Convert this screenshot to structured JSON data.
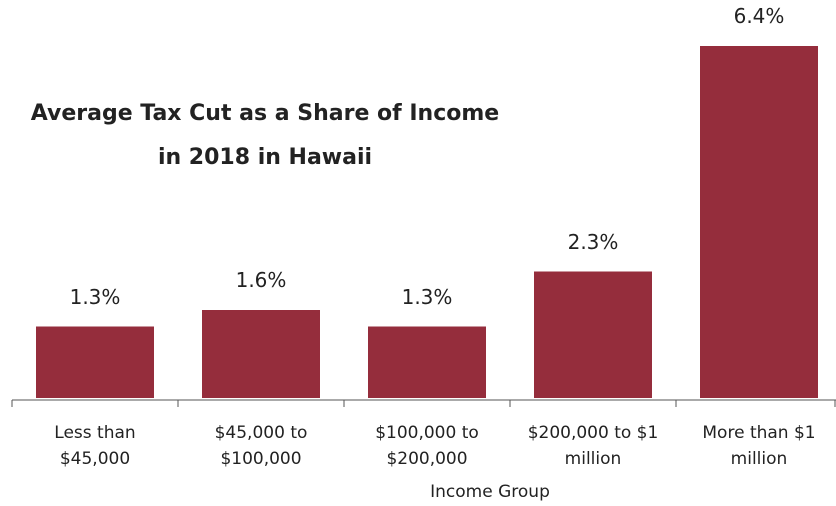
{
  "chart_data": {
    "type": "bar",
    "title": "Average Tax Cut as a Share of Income\nin 2018 in Hawaii",
    "x_label": "Income Group",
    "categories": [
      "Less than\n$45,000",
      "$45,000 to\n$100,000",
      "$100,000 to\n$200,000",
      "$200,000 to $1\nmillion",
      "More than $1\nmillion"
    ],
    "values": [
      1.3,
      1.6,
      1.3,
      2.3,
      6.4
    ],
    "value_labels": [
      "1.3%",
      "1.6%",
      "1.3%",
      "2.3%",
      "6.4%"
    ],
    "color": "#952d3c"
  }
}
